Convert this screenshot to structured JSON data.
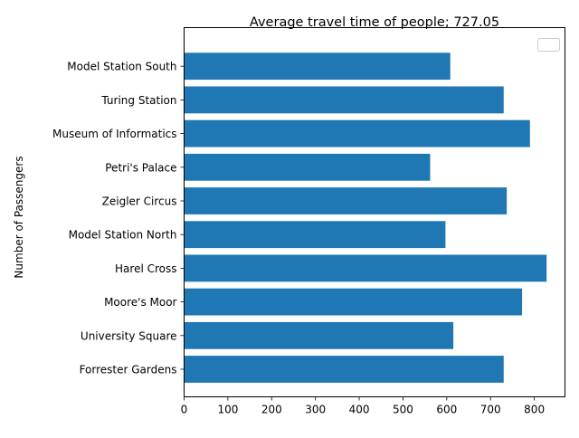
{
  "chart_data": {
    "type": "bar",
    "orientation": "horizontal",
    "title": "Average travel time of people; 727.05",
    "xlabel": "",
    "ylabel": "Number of Passengers",
    "categories": [
      "Forrester Gardens",
      "University Square",
      "Moore's Moor",
      "Harel Cross",
      "Model Station North",
      "Zeigler Circus",
      "Petri's Palace",
      "Museum of Informatics",
      "Turing Station",
      "Model Station South"
    ],
    "values": [
      730,
      615,
      772,
      828,
      597,
      737,
      562,
      790,
      730,
      608
    ],
    "xlim": [
      0,
      870
    ],
    "xticks": [
      0,
      100,
      200,
      300,
      400,
      500,
      600,
      700,
      800
    ],
    "grid": false,
    "legend": "top-right",
    "bar_color": "#1f77b4"
  }
}
